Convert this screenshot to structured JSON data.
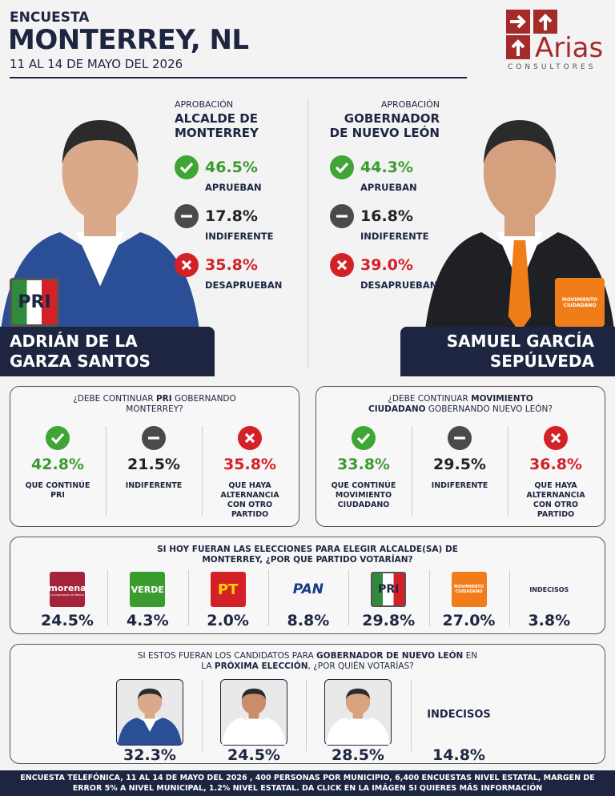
{
  "header": {
    "kicker": "ENCUESTA",
    "title": "MONTERREY, NL",
    "dates": "11 AL 14 DE MAYO DEL 2026"
  },
  "brand": {
    "name": "Arias",
    "tagline": "CONSULTORES"
  },
  "approval": [
    {
      "kicker": "APROBACIÓN",
      "title": "ALCALDE DE MONTERREY",
      "stats": [
        {
          "value": "46.5%",
          "label": "APRUEBAN"
        },
        {
          "value": "17.8%",
          "label": "INDIFERENTE"
        },
        {
          "value": "35.8%",
          "label": "DESAPRUEBAN"
        }
      ],
      "name": "ADRIÁN DE LA GARZA SANTOS",
      "party": "PRI"
    },
    {
      "kicker": "APROBACIÓN",
      "title": "GOBERNADOR DE NUEVO LEÓN",
      "stats": [
        {
          "value": "44.3%",
          "label": "APRUEBAN"
        },
        {
          "value": "16.8%",
          "label": "INDIFERENTE"
        },
        {
          "value": "39.0%",
          "label": "DESAPRUEBAN"
        }
      ],
      "name": "SAMUEL GARCÍA SEPÚLVEDA",
      "party": "MOVIMIENTO CIUDADANO"
    }
  ],
  "continuity": [
    {
      "question": [
        "¿DEBE CONTINUAR ",
        "PRI",
        " GOBERNANDO MONTERREY?"
      ],
      "options": [
        {
          "value": "42.8%",
          "label": "QUE CONTINÚE PRI"
        },
        {
          "value": "21.5%",
          "label": "INDIFERENTE"
        },
        {
          "value": "35.8%",
          "label": "QUE HAYA ALTERNANCIA CON OTRO PARTIDO"
        }
      ]
    },
    {
      "question": [
        "¿DEBE CONTINUAR ",
        "MOVIMIENTO CIUDADANO",
        " GOBERNANDO NUEVO LEÓN?"
      ],
      "options": [
        {
          "value": "33.8%",
          "label": "QUE CONTINÚE MOVIMIENTO CIUDADANO"
        },
        {
          "value": "29.5%",
          "label": "INDIFERENTE"
        },
        {
          "value": "36.8%",
          "label": "QUE HAYA ALTERNANCIA CON OTRO PARTIDO"
        }
      ]
    }
  ],
  "mayor_vote": {
    "question": [
      "SI HOY FUERAN LAS ELECCIONES PARA ELEGIR ALCALDE(SA) DE MONTERREY, ¿POR QUE PARTIDO VOTARÍAN?"
    ],
    "parties": [
      {
        "logo": "morena",
        "slogan": "La esperanza de México",
        "value": "24.5%"
      },
      {
        "logo": "VERDE",
        "value": "4.3%"
      },
      {
        "logo": "PT",
        "value": "2.0%"
      },
      {
        "logo": "PAN",
        "value": "8.8%"
      },
      {
        "logo": "PRI",
        "value": "29.8%"
      },
      {
        "logo": "MOVIMIENTO CIUDADANO",
        "value": "27.0%"
      },
      {
        "logo": "INDECISOS",
        "value": "3.8%"
      }
    ]
  },
  "governor_vote": {
    "question": [
      "SI ESTOS FUERAN LOS CANDIDATOS PARA ",
      "GOBERNADOR DE NUEVO LEÓN",
      " EN LA ",
      "PRÓXIMA ELECCIÓN",
      ", ¿POR QUIÉN VOTARÍAS?"
    ],
    "candidates": [
      {
        "value": "32.3%"
      },
      {
        "value": "24.5%"
      },
      {
        "value": "28.5%"
      }
    ],
    "undecided": {
      "label": "INDECISOS",
      "value": "14.8%"
    }
  },
  "footer": "ENCUESTA TELEFÓNICA, 11 AL 14 DE MAYO DEL 2026 , 400 PERSONAS POR MUNICIPIO, 6,400 ENCUESTAS NIVEL ESTATAL, MARGEN DE ERROR 5% A NIVEL MUNICIPAL, 1.2% NIVEL ESTATAL. DA CLICK EN LA IMÁGEN SI QUIERES MÁS INFORMACIÓN"
}
